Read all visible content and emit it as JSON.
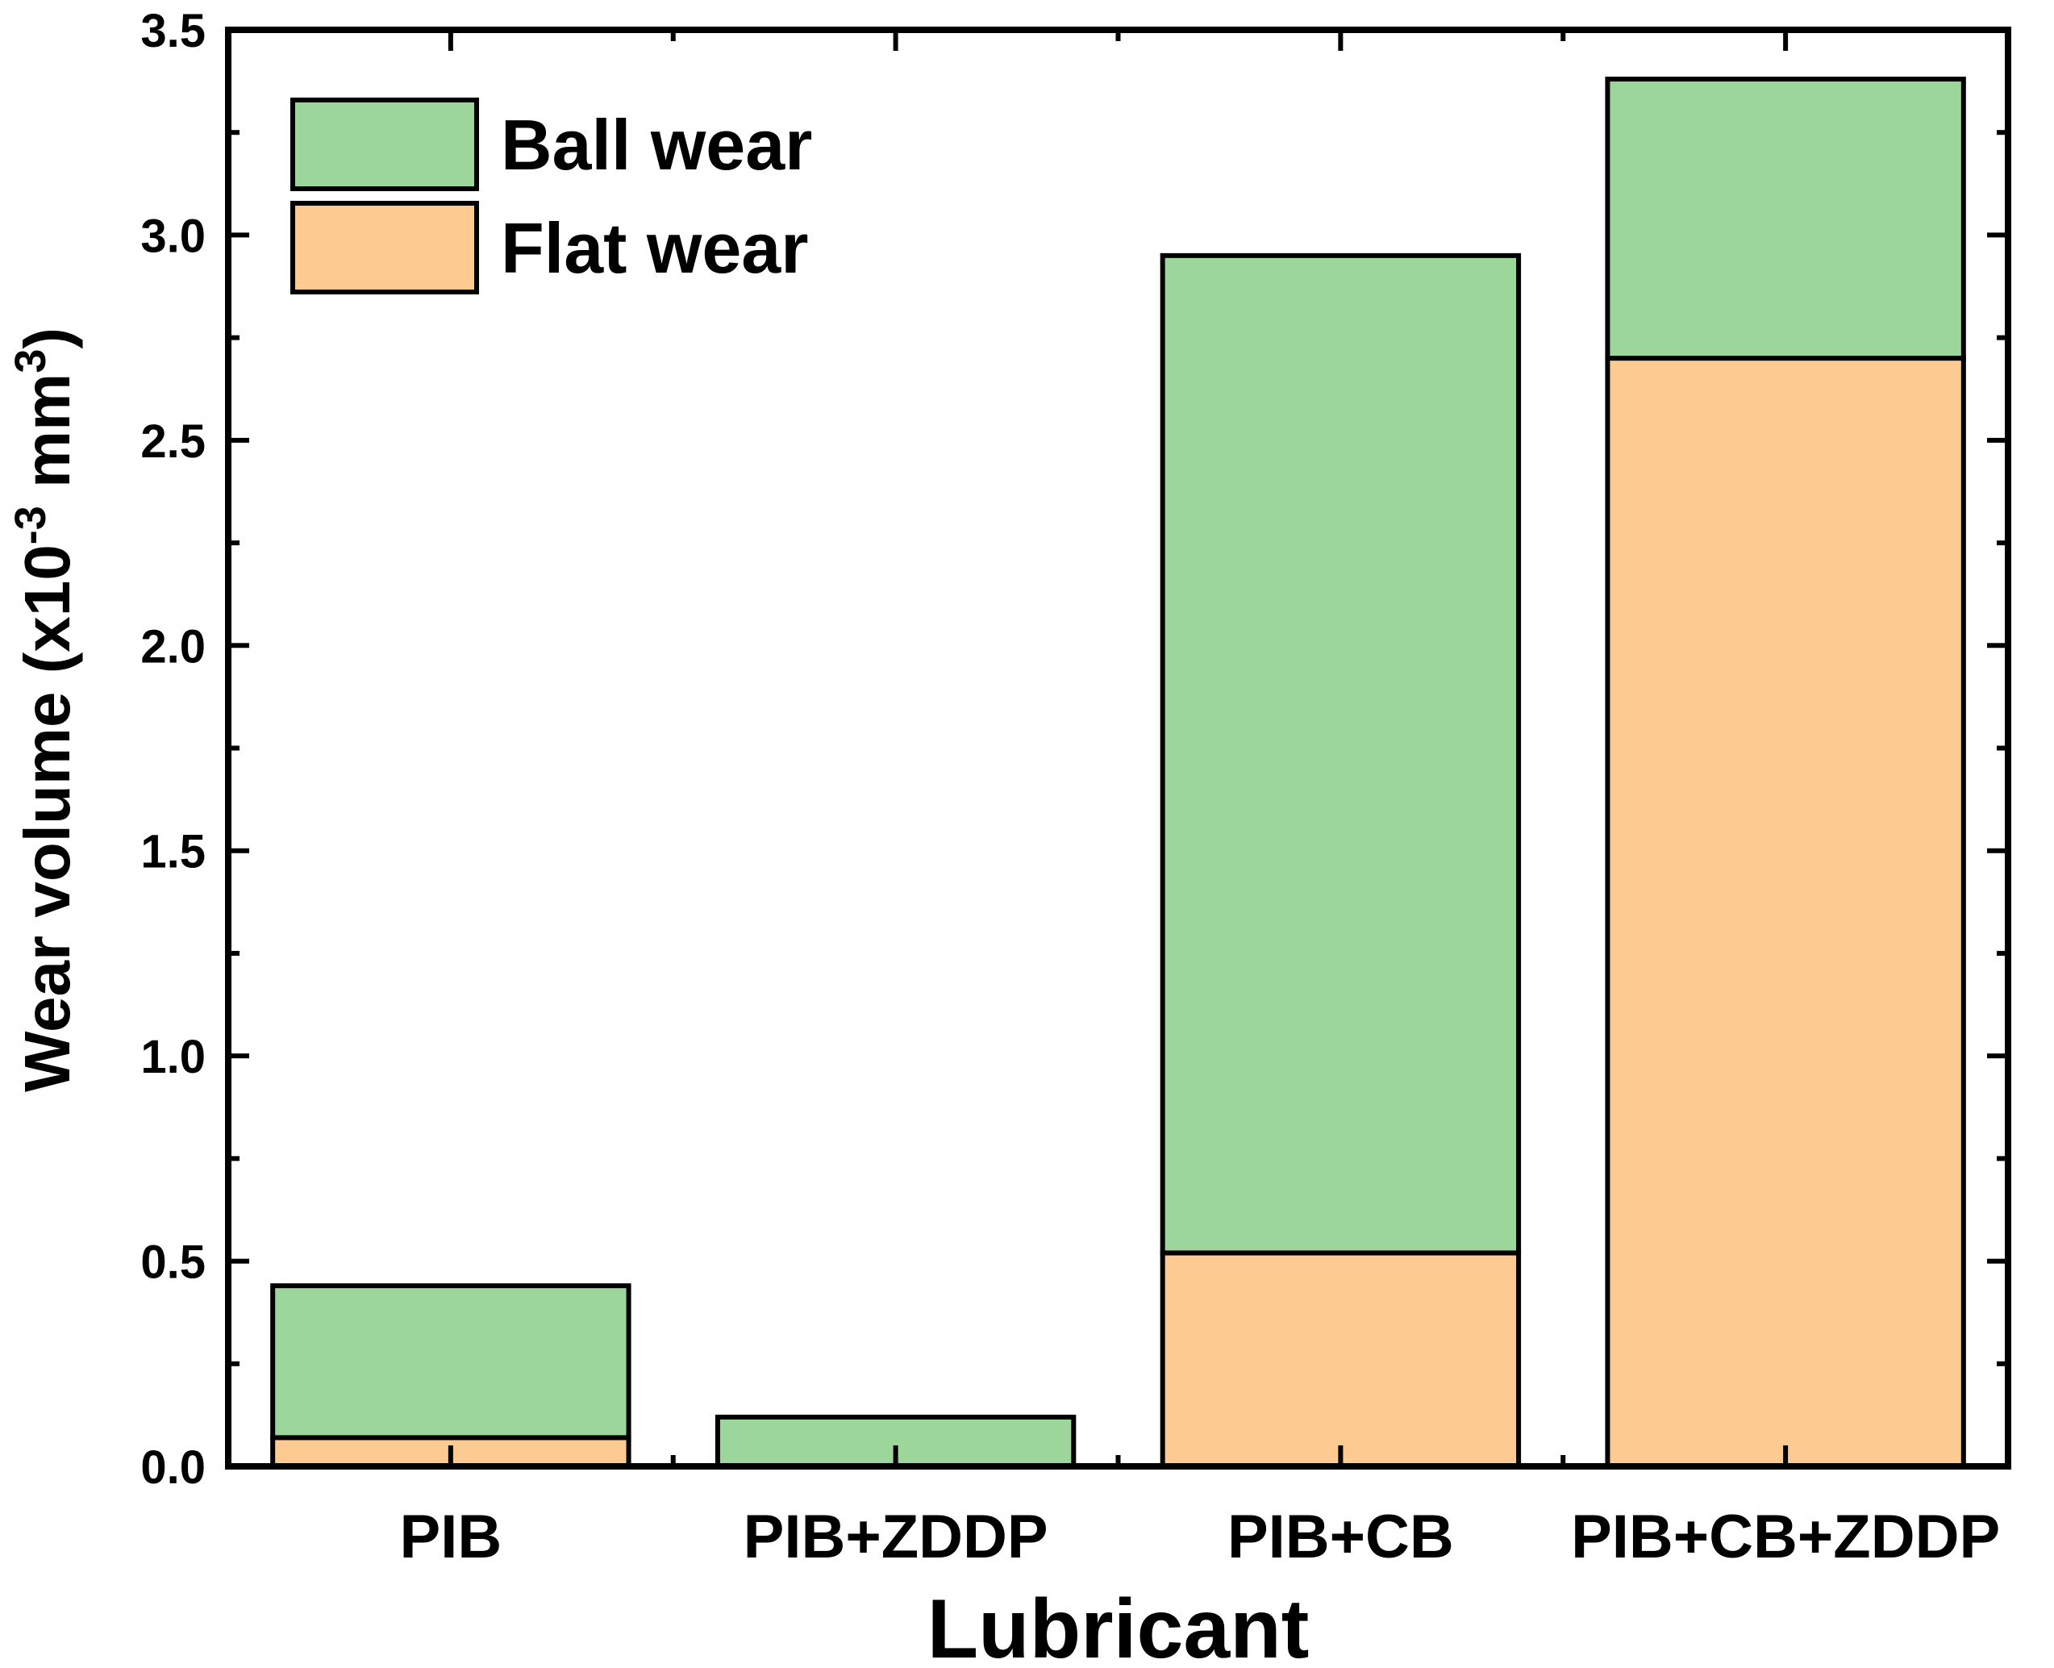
{
  "chart_data": {
    "type": "bar",
    "stacked": true,
    "categories": [
      "PIB",
      "PIB+ZDDP",
      "PIB+CB",
      "PIB+CB+ZDDP"
    ],
    "series": [
      {
        "name": "Flat wear",
        "color": "#FDCB92",
        "values": [
          0.07,
          0.0,
          0.52,
          2.7
        ]
      },
      {
        "name": "Ball wear",
        "color": "#9DD69B",
        "values": [
          0.37,
          0.12,
          2.43,
          0.68
        ]
      }
    ],
    "legend_order": [
      "Ball wear",
      "Flat wear"
    ],
    "xlabel": "Lubricant",
    "ylabel_prefix": "Wear volume (x10",
    "ylabel_sup1": "-3",
    "ylabel_mid": " mm",
    "ylabel_sup2": "3",
    "ylabel_suffix": ")",
    "ylim": [
      0,
      3.5
    ],
    "yticks": [
      "0.0",
      "0.5",
      "1.0",
      "1.5",
      "2.0",
      "2.5",
      "3.0",
      "3.5"
    ],
    "ytick_values": [
      0,
      0.5,
      1.0,
      1.5,
      2.0,
      2.5,
      3.0,
      3.5
    ],
    "yminor_step": 0.25,
    "grid": false,
    "legend_position": "top-left"
  }
}
